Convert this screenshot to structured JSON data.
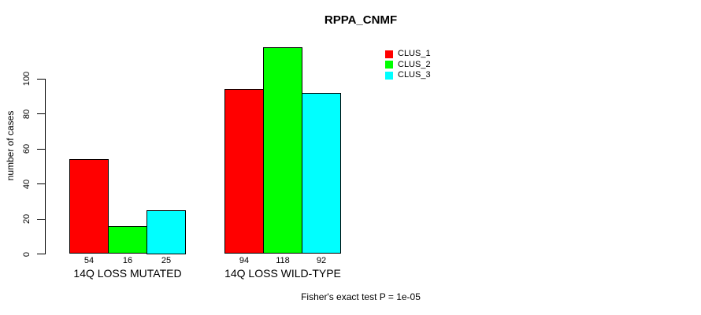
{
  "chart_data": {
    "type": "bar",
    "title": "RPPA_CNMF",
    "ylabel": "number of cases",
    "xlabel": "",
    "categories": [
      "14Q LOSS MUTATED",
      "14Q LOSS WILD-TYPE"
    ],
    "series": [
      {
        "name": "CLUS_1",
        "color": "#ff0000",
        "values": [
          54,
          94
        ]
      },
      {
        "name": "CLUS_2",
        "color": "#00ff00",
        "values": [
          16,
          118
        ]
      },
      {
        "name": "CLUS_3",
        "color": "#00ffff",
        "values": [
          25,
          92
        ]
      }
    ],
    "bar_value_labels": [
      [
        54,
        16,
        25
      ],
      [
        94,
        118,
        92
      ]
    ],
    "yticks": [
      0,
      20,
      40,
      60,
      80,
      100
    ],
    "ylim": [
      0,
      118
    ],
    "grid": false,
    "legend": {
      "position": "top-right",
      "entries": [
        "CLUS_1",
        "CLUS_2",
        "CLUS_3"
      ]
    },
    "annotation": "Fisher's exact test P = 1e-05"
  },
  "colors": {
    "background": "#ffffff",
    "bar_border": "#000000",
    "axis": "#000000",
    "clus_1": "#ff0000",
    "clus_2": "#00ff00",
    "clus_3": "#00ffff"
  }
}
